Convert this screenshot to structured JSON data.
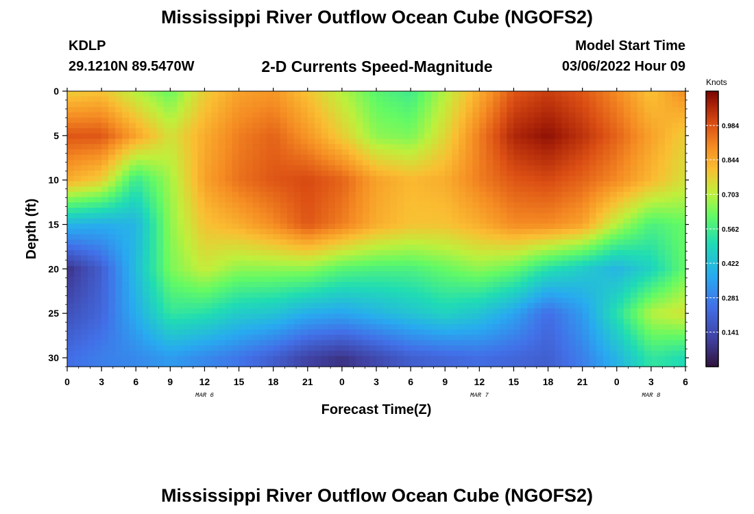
{
  "header": {
    "title": "Mississippi River Outflow Ocean Cube (NGOFS2)",
    "station": "KDLP",
    "coordinates": "29.1210N  89.5470W",
    "subtitle": "2-D Currents Speed-Magnitude",
    "model_start_label": "Model Start Time",
    "model_start_value": "03/06/2022 Hour 09"
  },
  "footer": {
    "title": "Mississippi River Outflow Ocean Cube (NGOFS2)"
  },
  "chart_data": {
    "type": "heatmap",
    "xlabel": "Forecast Time(Z)",
    "ylabel": "Depth (ft)",
    "x_tick_labels": [
      "0",
      "3",
      "6",
      "9",
      "12",
      "15",
      "18",
      "21",
      "0",
      "3",
      "6",
      "9",
      "12",
      "15",
      "18",
      "21",
      "0",
      "3",
      "6"
    ],
    "x_range_hours": [
      0,
      54
    ],
    "day_labels": [
      {
        "label": "MAR 6",
        "hour": 12
      },
      {
        "label": "MAR 7",
        "hour": 36
      },
      {
        "label": "MAR 8",
        "hour": 51
      }
    ],
    "y_tick_labels": [
      0,
      5,
      10,
      15,
      20,
      25,
      30
    ],
    "y_range_ft": [
      0,
      31
    ],
    "y_inverted": true,
    "colorbar": {
      "units": "Knots",
      "range": [
        0,
        1.124
      ],
      "tick_values": [
        0.141,
        0.281,
        0.422,
        0.562,
        0.703,
        0.844,
        0.984
      ],
      "tick_labels": [
        "0.141",
        "0.281",
        "0.422",
        "0.562",
        "0.703",
        "0.844",
        "0.984"
      ]
    },
    "field_hours": [
      0,
      3,
      6,
      9,
      12,
      15,
      18,
      21,
      24,
      27,
      30,
      33,
      36,
      39,
      42,
      45,
      48,
      51,
      54
    ],
    "field_depths_ft": [
      0,
      5,
      10,
      15,
      20,
      25,
      30
    ],
    "speed_knots": [
      [
        0.78,
        0.8,
        0.7,
        0.62,
        0.78,
        0.86,
        0.88,
        0.8,
        0.7,
        0.6,
        0.56,
        0.7,
        0.84,
        0.98,
        1.02,
        0.98,
        0.9,
        0.8,
        0.9
      ],
      [
        0.98,
        0.98,
        0.86,
        0.74,
        0.84,
        0.92,
        0.96,
        0.88,
        0.78,
        0.66,
        0.64,
        0.76,
        0.92,
        1.06,
        1.1,
        1.04,
        0.96,
        0.86,
        0.78
      ],
      [
        0.84,
        0.78,
        0.55,
        0.68,
        0.86,
        0.94,
        0.98,
        1.0,
        0.96,
        0.86,
        0.82,
        0.84,
        0.92,
        0.98,
        1.0,
        0.96,
        0.9,
        0.82,
        0.74
      ],
      [
        0.4,
        0.38,
        0.4,
        0.66,
        0.8,
        0.84,
        0.9,
        0.98,
        0.92,
        0.84,
        0.8,
        0.8,
        0.84,
        0.9,
        0.9,
        0.86,
        0.7,
        0.58,
        0.62
      ],
      [
        0.08,
        0.2,
        0.42,
        0.64,
        0.72,
        0.66,
        0.66,
        0.66,
        0.6,
        0.58,
        0.58,
        0.62,
        0.66,
        0.62,
        0.52,
        0.46,
        0.4,
        0.48,
        0.62
      ],
      [
        0.16,
        0.22,
        0.38,
        0.54,
        0.52,
        0.46,
        0.44,
        0.38,
        0.36,
        0.4,
        0.44,
        0.48,
        0.44,
        0.36,
        0.24,
        0.34,
        0.52,
        0.7,
        0.74
      ],
      [
        0.24,
        0.28,
        0.3,
        0.34,
        0.3,
        0.26,
        0.2,
        0.12,
        0.08,
        0.14,
        0.2,
        0.22,
        0.24,
        0.22,
        0.2,
        0.28,
        0.4,
        0.54,
        0.5
      ]
    ]
  }
}
